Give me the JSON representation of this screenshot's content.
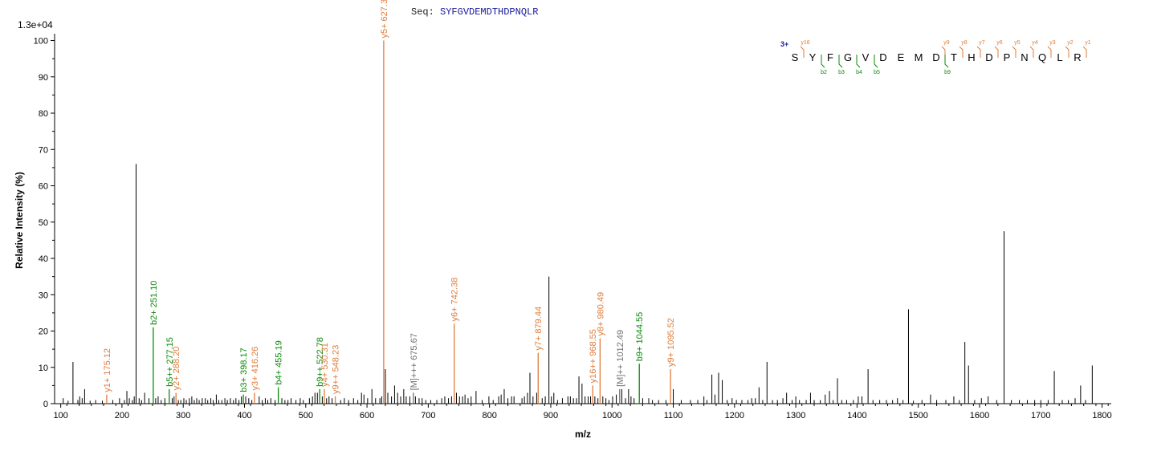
{
  "header": {
    "seq_label": "Seq:",
    "seq_value": "SYFGVDEMDTHDPNQLR",
    "scale_label": "1.3e+04"
  },
  "colors": {
    "y_ion": "#e07b39",
    "b_ion": "#0a8a0a",
    "precursor": "#707070",
    "unassigned": "#000000",
    "charge": "#1a1a9c"
  },
  "chart_data": {
    "type": "bar",
    "title": "",
    "xlabel": "m/z",
    "ylabel": "Relative   Intensity (%)",
    "xlim": [
      90,
      1815
    ],
    "ylim": [
      0,
      101
    ],
    "xticks": [
      100,
      200,
      300,
      400,
      500,
      600,
      700,
      800,
      900,
      1000,
      1100,
      1200,
      1300,
      1400,
      1500,
      1600,
      1700,
      1800
    ],
    "yticks": [
      0,
      10,
      20,
      30,
      40,
      50,
      60,
      70,
      80,
      90,
      100
    ],
    "grid": false,
    "annotated_peaks": [
      {
        "mz": 175.12,
        "intensity": 2.5,
        "label": "y1+ 175.12",
        "ion": "y"
      },
      {
        "mz": 251.1,
        "intensity": 21,
        "label": "b2+ 251.10",
        "ion": "b"
      },
      {
        "mz": 277.15,
        "intensity": 4,
        "label": "b5++ 277.15",
        "ion": "b"
      },
      {
        "mz": 288.2,
        "intensity": 3,
        "label": "y2+ 288.20",
        "ion": "y"
      },
      {
        "mz": 398.17,
        "intensity": 2.5,
        "label": "b3+ 398.17",
        "ion": "b"
      },
      {
        "mz": 416.26,
        "intensity": 3,
        "label": "y3+ 416.26",
        "ion": "y"
      },
      {
        "mz": 455.19,
        "intensity": 4.5,
        "label": "b4+ 455.19",
        "ion": "b"
      },
      {
        "mz": 522.78,
        "intensity": 4,
        "label": "b9++ 522.78",
        "ion": "b"
      },
      {
        "mz": 530.31,
        "intensity": 4,
        "label": "y4+ 530.31",
        "ion": "y"
      },
      {
        "mz": 548.23,
        "intensity": 2,
        "label": "y9++ 548.23",
        "ion": "y"
      },
      {
        "mz": 627.3,
        "intensity": 100,
        "label": "y5+ 627.3",
        "ion": "y"
      },
      {
        "mz": 675.67,
        "intensity": 3,
        "label": "[M]+++ 675.67",
        "ion": "precursor"
      },
      {
        "mz": 742.38,
        "intensity": 22,
        "label": "y6+ 742.38",
        "ion": "y"
      },
      {
        "mz": 879.44,
        "intensity": 14,
        "label": "y7+ 879.44",
        "ion": "y"
      },
      {
        "mz": 968.55,
        "intensity": 5,
        "label": "y16++ 968.55",
        "ion": "y"
      },
      {
        "mz": 980.49,
        "intensity": 18,
        "label": "y8+ 980.49",
        "ion": "y"
      },
      {
        "mz": 1012.49,
        "intensity": 4,
        "label": "[M]++ 1012.49",
        "ion": "precursor"
      },
      {
        "mz": 1044.55,
        "intensity": 11,
        "label": "b9+ 1044.55",
        "ion": "b"
      },
      {
        "mz": 1095.52,
        "intensity": 9.5,
        "label": "y9+ 1095.52",
        "ion": "y"
      }
    ],
    "peaks": [
      [
        104,
        1.5
      ],
      [
        112,
        0.8
      ],
      [
        120,
        11.5
      ],
      [
        128,
        1
      ],
      [
        131,
        2
      ],
      [
        135,
        1.5
      ],
      [
        139,
        4
      ],
      [
        148,
        0.8
      ],
      [
        157,
        1
      ],
      [
        168,
        0.8
      ],
      [
        185,
        1
      ],
      [
        196,
        1.5
      ],
      [
        204,
        1
      ],
      [
        208,
        3.5
      ],
      [
        212,
        1.5
      ],
      [
        217,
        1
      ],
      [
        220,
        2
      ],
      [
        223,
        66
      ],
      [
        228,
        1.5
      ],
      [
        232,
        1
      ],
      [
        237,
        3
      ],
      [
        244,
        1.5
      ],
      [
        255,
        1.5
      ],
      [
        259,
        2
      ],
      [
        264,
        1
      ],
      [
        270,
        1.5
      ],
      [
        282,
        1.5
      ],
      [
        285,
        2
      ],
      [
        292,
        1
      ],
      [
        296,
        1
      ],
      [
        301,
        1.5
      ],
      [
        305,
        1
      ],
      [
        310,
        1.5
      ],
      [
        314,
        2
      ],
      [
        318,
        1
      ],
      [
        322,
        1.5
      ],
      [
        326,
        1
      ],
      [
        331,
        1.5
      ],
      [
        336,
        1.5
      ],
      [
        340,
        1
      ],
      [
        345,
        1.5
      ],
      [
        349,
        1
      ],
      [
        354,
        2.5
      ],
      [
        358,
        1
      ],
      [
        363,
        1
      ],
      [
        368,
        1.5
      ],
      [
        372,
        1
      ],
      [
        377,
        1.5
      ],
      [
        382,
        1
      ],
      [
        386,
        1.5
      ],
      [
        391,
        1
      ],
      [
        395,
        2
      ],
      [
        402,
        2
      ],
      [
        407,
        1.5
      ],
      [
        412,
        1
      ],
      [
        424,
        2
      ],
      [
        429,
        1
      ],
      [
        434,
        1.5
      ],
      [
        438,
        1
      ],
      [
        443,
        1.5
      ],
      [
        450,
        1
      ],
      [
        461,
        1.5
      ],
      [
        466,
        1
      ],
      [
        471,
        1
      ],
      [
        476,
        1.5
      ],
      [
        484,
        1
      ],
      [
        491,
        1.5
      ],
      [
        496,
        1
      ],
      [
        506,
        1.5
      ],
      [
        511,
        2
      ],
      [
        515,
        3
      ],
      [
        519,
        3
      ],
      [
        527,
        2
      ],
      [
        534,
        1.5
      ],
      [
        538,
        2
      ],
      [
        543,
        1.5
      ],
      [
        557,
        1
      ],
      [
        563,
        1.5
      ],
      [
        570,
        1
      ],
      [
        578,
        1.5
      ],
      [
        585,
        1
      ],
      [
        591,
        3
      ],
      [
        595,
        2.5
      ],
      [
        601,
        1.5
      ],
      [
        608,
        4
      ],
      [
        614,
        1.5
      ],
      [
        621,
        1.5
      ],
      [
        624,
        2
      ],
      [
        630,
        9.5
      ],
      [
        634,
        3
      ],
      [
        640,
        2
      ],
      [
        645,
        5
      ],
      [
        650,
        3
      ],
      [
        655,
        2
      ],
      [
        660,
        4
      ],
      [
        664,
        2
      ],
      [
        670,
        2
      ],
      [
        679,
        2
      ],
      [
        685,
        1.5
      ],
      [
        690,
        1.5
      ],
      [
        696,
        1
      ],
      [
        704,
        1
      ],
      [
        714,
        1
      ],
      [
        722,
        1.5
      ],
      [
        727,
        2
      ],
      [
        733,
        1.5
      ],
      [
        738,
        2
      ],
      [
        746,
        3
      ],
      [
        751,
        2
      ],
      [
        756,
        2
      ],
      [
        760,
        2.5
      ],
      [
        765,
        1.5
      ],
      [
        770,
        2
      ],
      [
        778,
        3.5
      ],
      [
        788,
        1
      ],
      [
        799,
        2
      ],
      [
        806,
        1
      ],
      [
        815,
        2
      ],
      [
        819,
        2.5
      ],
      [
        824,
        4
      ],
      [
        830,
        1.5
      ],
      [
        836,
        2
      ],
      [
        840,
        2
      ],
      [
        853,
        1.5
      ],
      [
        857,
        2
      ],
      [
        862,
        3
      ],
      [
        866,
        8.5
      ],
      [
        871,
        2
      ],
      [
        877,
        3
      ],
      [
        886,
        1.5
      ],
      [
        891,
        2
      ],
      [
        897,
        35
      ],
      [
        901,
        2
      ],
      [
        905,
        3
      ],
      [
        911,
        1
      ],
      [
        919,
        1.5
      ],
      [
        928,
        2
      ],
      [
        932,
        2
      ],
      [
        937,
        1.5
      ],
      [
        942,
        1.5
      ],
      [
        946,
        7.5
      ],
      [
        951,
        5.5
      ],
      [
        956,
        2
      ],
      [
        961,
        2
      ],
      [
        965,
        2
      ],
      [
        972,
        2
      ],
      [
        977,
        1.5
      ],
      [
        985,
        2
      ],
      [
        990,
        1.5
      ],
      [
        995,
        1
      ],
      [
        1001,
        2
      ],
      [
        1007,
        2.5
      ],
      [
        1016,
        4
      ],
      [
        1022,
        1.5
      ],
      [
        1027,
        4
      ],
      [
        1031,
        2
      ],
      [
        1036,
        1.5
      ],
      [
        1050,
        1.5
      ],
      [
        1060,
        1.5
      ],
      [
        1066,
        1
      ],
      [
        1076,
        1
      ],
      [
        1088,
        1
      ],
      [
        1100,
        4
      ],
      [
        1113,
        1
      ],
      [
        1128,
        1
      ],
      [
        1140,
        1
      ],
      [
        1150,
        2
      ],
      [
        1155,
        1
      ],
      [
        1163,
        8
      ],
      [
        1168,
        2.5
      ],
      [
        1174,
        8.5
      ],
      [
        1180,
        6.5
      ],
      [
        1188,
        1
      ],
      [
        1196,
        1.5
      ],
      [
        1203,
        1
      ],
      [
        1212,
        1
      ],
      [
        1222,
        1
      ],
      [
        1228,
        1.5
      ],
      [
        1234,
        1.5
      ],
      [
        1240,
        4.5
      ],
      [
        1246,
        1
      ],
      [
        1253,
        11.5
      ],
      [
        1262,
        1
      ],
      [
        1270,
        1
      ],
      [
        1279,
        1.5
      ],
      [
        1285,
        3
      ],
      [
        1294,
        1
      ],
      [
        1300,
        2
      ],
      [
        1306,
        1
      ],
      [
        1317,
        1
      ],
      [
        1324,
        3
      ],
      [
        1330,
        1
      ],
      [
        1340,
        1
      ],
      [
        1348,
        2.5
      ],
      [
        1355,
        3.5
      ],
      [
        1361,
        1
      ],
      [
        1368,
        7
      ],
      [
        1375,
        1
      ],
      [
        1383,
        1
      ],
      [
        1394,
        1
      ],
      [
        1402,
        2
      ],
      [
        1408,
        2
      ],
      [
        1418,
        9.5
      ],
      [
        1426,
        1
      ],
      [
        1437,
        1
      ],
      [
        1448,
        1
      ],
      [
        1458,
        1
      ],
      [
        1466,
        1.5
      ],
      [
        1475,
        1
      ],
      [
        1484,
        26
      ],
      [
        1492,
        0.8
      ],
      [
        1506,
        1
      ],
      [
        1520,
        2.5
      ],
      [
        1530,
        1
      ],
      [
        1545,
        1
      ],
      [
        1558,
        2
      ],
      [
        1567,
        1
      ],
      [
        1576,
        17
      ],
      [
        1582,
        10.5
      ],
      [
        1592,
        1
      ],
      [
        1603,
        1.5
      ],
      [
        1614,
        2
      ],
      [
        1628,
        1
      ],
      [
        1640,
        47.5
      ],
      [
        1652,
        1
      ],
      [
        1665,
        1
      ],
      [
        1678,
        1
      ],
      [
        1690,
        1
      ],
      [
        1700,
        1
      ],
      [
        1712,
        1
      ],
      [
        1722,
        9
      ],
      [
        1735,
        1
      ],
      [
        1745,
        1
      ],
      [
        1756,
        1.5
      ],
      [
        1765,
        5
      ],
      [
        1773,
        1
      ],
      [
        1784,
        10.5
      ]
    ]
  },
  "sequence_map": {
    "charge": "3+",
    "residues": [
      "S",
      "Y",
      "F",
      "G",
      "V",
      "D",
      "E",
      "M",
      "D",
      "T",
      "H",
      "D",
      "P",
      "N",
      "Q",
      "L",
      "R"
    ],
    "y_marks": [
      {
        "after": 1,
        "label": "y16"
      },
      {
        "after": 9,
        "label": "y9"
      },
      {
        "after": 10,
        "label": "y8"
      },
      {
        "after": 11,
        "label": "y7"
      },
      {
        "after": 12,
        "label": "y6"
      },
      {
        "after": 13,
        "label": "y5"
      },
      {
        "after": 14,
        "label": "y4"
      },
      {
        "after": 15,
        "label": "y3"
      },
      {
        "after": 16,
        "label": "y2"
      },
      {
        "after": 17,
        "label": "y1"
      }
    ],
    "b_marks": [
      {
        "after": 2,
        "label": "b2"
      },
      {
        "after": 3,
        "label": "b3"
      },
      {
        "after": 4,
        "label": "b4"
      },
      {
        "after": 5,
        "label": "b5"
      },
      {
        "after": 9,
        "label": "b9"
      }
    ]
  }
}
